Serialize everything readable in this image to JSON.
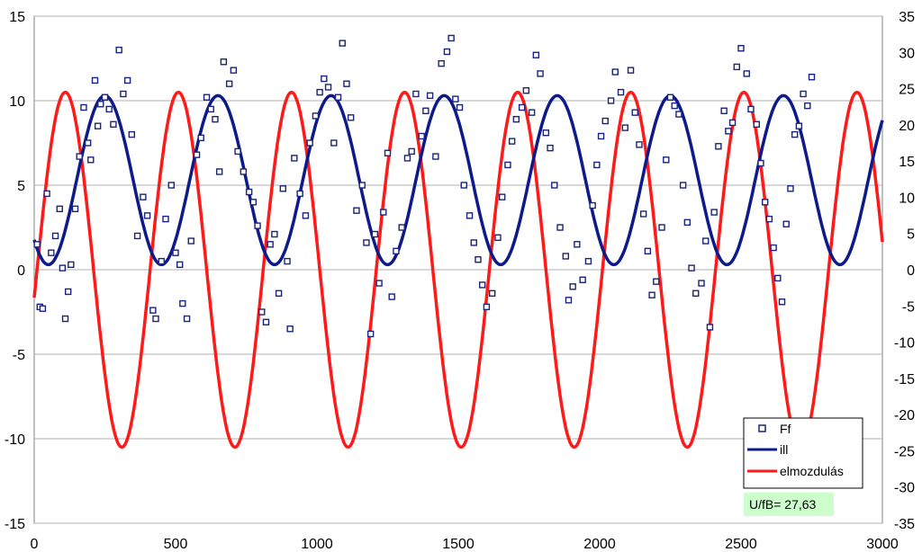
{
  "chart_data": {
    "type": "line",
    "xlim": [
      0,
      3000
    ],
    "x_ticks": [
      "0",
      "500",
      "1000",
      "1500",
      "2000",
      "2500",
      "3000"
    ],
    "y_left_lim": [
      -15,
      15
    ],
    "y_left_ticks": [
      "15",
      "10",
      "5",
      "0",
      "-5",
      "-10",
      "-15"
    ],
    "y_right_lim": [
      -35,
      35
    ],
    "y_right_ticks": [
      "35",
      "30",
      "25",
      "20",
      "15",
      "10",
      "5",
      "0",
      "-5",
      "-10",
      "-15",
      "-20",
      "-25",
      "-30",
      "-35"
    ],
    "grid": "horizontal",
    "legend_position": "bottom-right",
    "series": [
      {
        "name": "Ff",
        "kind": "scatter",
        "axis": "left",
        "color": "#1a237e",
        "points": [
          [
            10,
            1.5
          ],
          [
            20,
            -2.2
          ],
          [
            30,
            -2.3
          ],
          [
            45,
            4.5
          ],
          [
            60,
            1.0
          ],
          [
            75,
            2.0
          ],
          [
            90,
            3.6
          ],
          [
            100,
            0.1
          ],
          [
            110,
            -2.9
          ],
          [
            120,
            -1.3
          ],
          [
            130,
            0.3
          ],
          [
            145,
            3.6
          ],
          [
            160,
            6.7
          ],
          [
            175,
            9.6
          ],
          [
            190,
            7.5
          ],
          [
            200,
            6.5
          ],
          [
            215,
            11.2
          ],
          [
            225,
            8.5
          ],
          [
            235,
            9.8
          ],
          [
            250,
            10.2
          ],
          [
            265,
            9.5
          ],
          [
            280,
            8.6
          ],
          [
            300,
            13.0
          ],
          [
            315,
            10.4
          ],
          [
            330,
            11.2
          ],
          [
            345,
            8.0
          ],
          [
            365,
            2.0
          ],
          [
            385,
            4.3
          ],
          [
            400,
            3.2
          ],
          [
            420,
            -2.4
          ],
          [
            430,
            -2.9
          ],
          [
            450,
            0.5
          ],
          [
            465,
            3.0
          ],
          [
            485,
            5.0
          ],
          [
            500,
            1.0
          ],
          [
            515,
            0.3
          ],
          [
            525,
            -2.0
          ],
          [
            540,
            -2.9
          ],
          [
            555,
            1.7
          ],
          [
            575,
            6.8
          ],
          [
            590,
            7.8
          ],
          [
            610,
            10.2
          ],
          [
            625,
            9.5
          ],
          [
            640,
            8.9
          ],
          [
            655,
            5.8
          ],
          [
            670,
            12.3
          ],
          [
            690,
            11.0
          ],
          [
            705,
            11.8
          ],
          [
            720,
            7.0
          ],
          [
            740,
            5.8
          ],
          [
            760,
            4.6
          ],
          [
            775,
            4.0
          ],
          [
            790,
            2.6
          ],
          [
            805,
            -2.5
          ],
          [
            820,
            -3.1
          ],
          [
            835,
            1.5
          ],
          [
            850,
            2.1
          ],
          [
            865,
            -1.4
          ],
          [
            880,
            4.8
          ],
          [
            895,
            0.5
          ],
          [
            905,
            -3.5
          ],
          [
            920,
            6.6
          ],
          [
            940,
            4.5
          ],
          [
            960,
            3.2
          ],
          [
            975,
            7.5
          ],
          [
            995,
            9.1
          ],
          [
            1010,
            10.5
          ],
          [
            1025,
            11.3
          ],
          [
            1040,
            10.8
          ],
          [
            1060,
            7.5
          ],
          [
            1075,
            10.2
          ],
          [
            1090,
            13.4
          ],
          [
            1105,
            11.0
          ],
          [
            1120,
            9.0
          ],
          [
            1140,
            3.5
          ],
          [
            1160,
            5.0
          ],
          [
            1175,
            1.6
          ],
          [
            1190,
            -3.8
          ],
          [
            1205,
            2.1
          ],
          [
            1220,
            -0.8
          ],
          [
            1235,
            3.4
          ],
          [
            1250,
            6.9
          ],
          [
            1265,
            -1.6
          ],
          [
            1280,
            1.1
          ],
          [
            1300,
            2.5
          ],
          [
            1320,
            6.6
          ],
          [
            1335,
            7.0
          ],
          [
            1350,
            10.4
          ],
          [
            1370,
            7.9
          ],
          [
            1385,
            9.4
          ],
          [
            1400,
            10.3
          ],
          [
            1420,
            6.7
          ],
          [
            1440,
            12.2
          ],
          [
            1460,
            12.9
          ],
          [
            1475,
            13.7
          ],
          [
            1490,
            10.1
          ],
          [
            1505,
            9.6
          ],
          [
            1520,
            5.0
          ],
          [
            1540,
            3.2
          ],
          [
            1555,
            1.6
          ],
          [
            1570,
            0.6
          ],
          [
            1585,
            -0.9
          ],
          [
            1600,
            -2.2
          ],
          [
            1620,
            -1.4
          ],
          [
            1640,
            1.9
          ],
          [
            1655,
            4.3
          ],
          [
            1675,
            6.2
          ],
          [
            1690,
            7.6
          ],
          [
            1705,
            8.9
          ],
          [
            1725,
            9.6
          ],
          [
            1740,
            10.6
          ],
          [
            1760,
            9.3
          ],
          [
            1775,
            12.7
          ],
          [
            1790,
            11.6
          ],
          [
            1810,
            8.1
          ],
          [
            1825,
            7.2
          ],
          [
            1840,
            5.0
          ],
          [
            1860,
            2.5
          ],
          [
            1880,
            0.8
          ],
          [
            1890,
            -1.8
          ],
          [
            1905,
            -1.0
          ],
          [
            1920,
            1.5
          ],
          [
            1940,
            -0.6
          ],
          [
            1960,
            0.5
          ],
          [
            1975,
            3.8
          ],
          [
            1990,
            6.2
          ],
          [
            2005,
            7.9
          ],
          [
            2020,
            8.8
          ],
          [
            2040,
            10.0
          ],
          [
            2055,
            11.7
          ],
          [
            2075,
            10.5
          ],
          [
            2090,
            8.4
          ],
          [
            2110,
            11.8
          ],
          [
            2125,
            9.3
          ],
          [
            2140,
            7.4
          ],
          [
            2155,
            3.3
          ],
          [
            2170,
            1.1
          ],
          [
            2185,
            -1.5
          ],
          [
            2200,
            -0.7
          ],
          [
            2220,
            2.5
          ],
          [
            2235,
            6.5
          ],
          [
            2250,
            10.2
          ],
          [
            2265,
            9.7
          ],
          [
            2280,
            9.2
          ],
          [
            2295,
            5.0
          ],
          [
            2310,
            2.8
          ],
          [
            2325,
            0.1
          ],
          [
            2340,
            -1.4
          ],
          [
            2360,
            -0.8
          ],
          [
            2375,
            1.7
          ],
          [
            2390,
            -3.4
          ],
          [
            2405,
            3.4
          ],
          [
            2420,
            7.3
          ],
          [
            2440,
            9.4
          ],
          [
            2455,
            8.2
          ],
          [
            2470,
            8.7
          ],
          [
            2485,
            12.0
          ],
          [
            2500,
            13.1
          ],
          [
            2520,
            11.6
          ],
          [
            2535,
            9.5
          ],
          [
            2555,
            8.6
          ],
          [
            2570,
            6.3
          ],
          [
            2585,
            4.0
          ],
          [
            2600,
            3.0
          ],
          [
            2615,
            1.3
          ],
          [
            2630,
            -0.5
          ],
          [
            2645,
            -1.9
          ],
          [
            2660,
            2.7
          ],
          [
            2675,
            4.8
          ],
          [
            2690,
            8.0
          ],
          [
            2705,
            8.5
          ],
          [
            2720,
            10.4
          ],
          [
            2735,
            9.7
          ],
          [
            2750,
            11.4
          ]
        ]
      },
      {
        "name": "ill",
        "kind": "line",
        "axis": "left",
        "color": "#0d1a8a",
        "model": "sine",
        "center": 5.3,
        "amplitude": 5.0,
        "period": 400,
        "peak_x": 250
      },
      {
        "name": "elmozdulás",
        "kind": "line",
        "axis": "right",
        "color": "#ff1a1a",
        "model": "sine",
        "center": 0,
        "amplitude": 24.5,
        "period": 400,
        "peak_x": 110
      }
    ],
    "annotation": "U/fB= 27,63"
  }
}
